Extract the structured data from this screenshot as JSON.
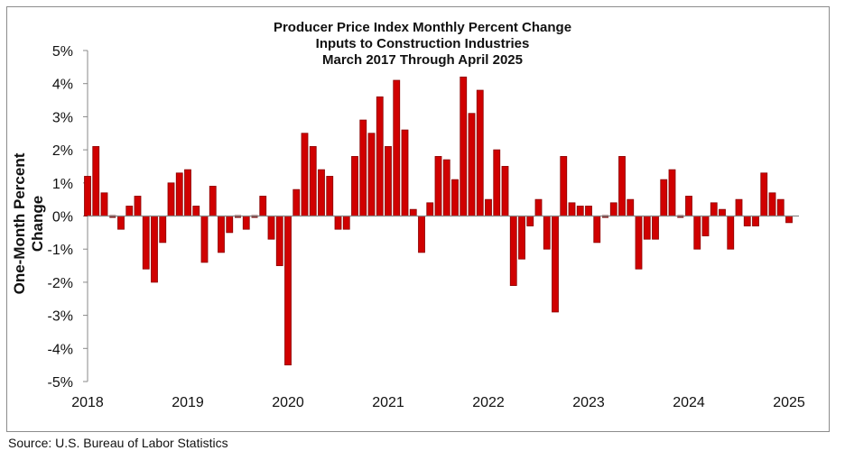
{
  "chart_data": {
    "type": "bar",
    "title": [
      "Producer Price Index Monthly Percent Change",
      "Inputs to Construction Industries",
      "March 2017 Through April 2025"
    ],
    "xlabel": "",
    "ylabel": "One-Month Percent Change",
    "ylim": [
      -5,
      5
    ],
    "yticks": [
      5,
      4,
      3,
      2,
      1,
      0,
      -1,
      -2,
      -3,
      -4,
      -5
    ],
    "ytick_labels": [
      "5%",
      "4%",
      "3%",
      "2%",
      "1%",
      "0%",
      "-1%",
      "-2%",
      "-3%",
      "-4%",
      "-5%"
    ],
    "xticks": [
      {
        "label": "2018",
        "index": 0
      },
      {
        "label": "2019",
        "index": 12
      },
      {
        "label": "2020",
        "index": 24
      },
      {
        "label": "2021",
        "index": 36
      },
      {
        "label": "2022",
        "index": 48
      },
      {
        "label": "2023",
        "index": 60
      },
      {
        "label": "2024",
        "index": 72
      },
      {
        "label": "2025",
        "index": 84
      }
    ],
    "grid": false,
    "bar_color": "#d00000",
    "values": [
      1.2,
      2.1,
      0.7,
      0,
      -0.4,
      0.3,
      0.6,
      -1.6,
      -2.0,
      -0.8,
      1.0,
      1.3,
      1.4,
      0.3,
      -1.4,
      0.9,
      -1.1,
      -0.5,
      0,
      -0.4,
      0,
      0.6,
      -0.7,
      -1.5,
      -4.5,
      0.8,
      2.5,
      2.1,
      1.4,
      1.2,
      -0.4,
      -0.4,
      1.8,
      2.9,
      2.5,
      3.6,
      2.1,
      4.1,
      2.6,
      0.2,
      -1.1,
      0.4,
      1.8,
      1.7,
      1.1,
      4.2,
      3.1,
      3.8,
      0.5,
      2.0,
      1.5,
      -2.1,
      -1.3,
      -0.3,
      0.5,
      -1.0,
      -2.9,
      1.8,
      0.4,
      0.3,
      0.3,
      -0.8,
      0,
      0.4,
      1.8,
      0.5,
      -1.6,
      -0.7,
      -0.7,
      1.1,
      1.4,
      0,
      0.6,
      -1.0,
      -0.6,
      0.4,
      0.2,
      -1.0,
      0.5,
      -0.3,
      -0.3,
      1.3,
      0.7,
      0.5,
      -0.2
    ]
  },
  "source": "Source: U.S. Bureau of Labor Statistics"
}
